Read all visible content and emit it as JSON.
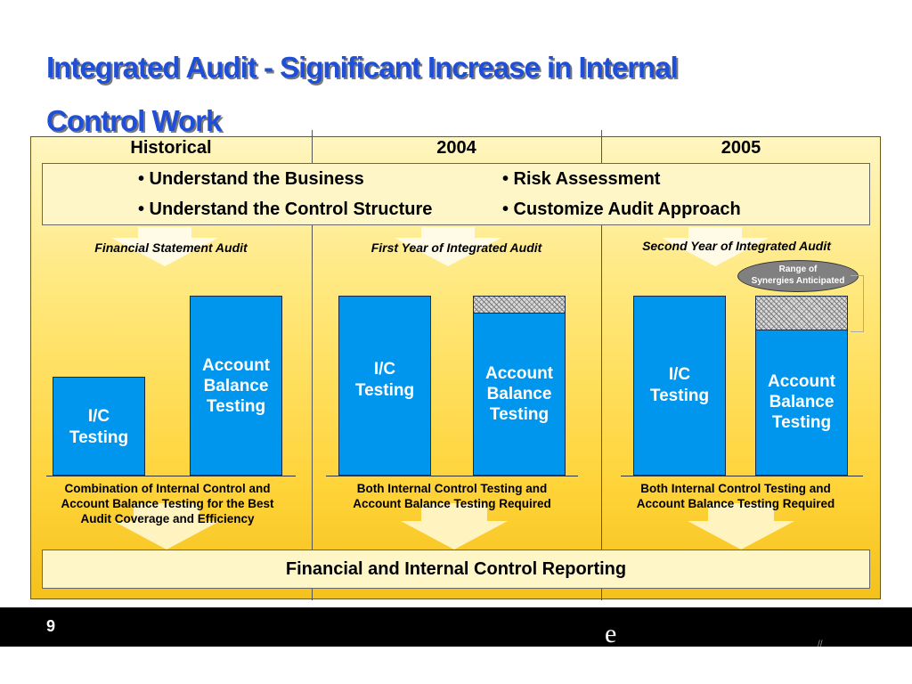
{
  "slide": {
    "title_line1": "Integrated Audit - Significant Increase in Internal",
    "title_line2": "Control Work",
    "columns": [
      "Historical",
      "2004",
      "2005"
    ],
    "bullets": {
      "left": [
        "• Understand the Business",
        "• Understand the Control Structure"
      ],
      "right": [
        "• Risk Assessment",
        "• Customize Audit Approach"
      ]
    },
    "sections": [
      {
        "label": "Financial Statement Audit",
        "bar1": [
          "I/C",
          "Testing"
        ],
        "bar2": [
          "Account",
          "Balance",
          "Testing"
        ],
        "desc": [
          "Combination of Internal Control and",
          "Account Balance Testing for the Best",
          "Audit Coverage and Efficiency"
        ]
      },
      {
        "label": "First Year of Integrated Audit",
        "bar1": [
          "I/C",
          "Testing"
        ],
        "bar2": [
          "Account",
          "Balance",
          "Testing"
        ],
        "desc": [
          "Both Internal Control Testing and",
          "Account Balance Testing Required"
        ]
      },
      {
        "label": "Second Year of Integrated Audit",
        "bar1": [
          "I/C",
          "Testing"
        ],
        "bar2": [
          "Account",
          "Balance",
          "Testing"
        ],
        "desc": [
          "Both Internal Control Testing and",
          "Account Balance Testing Required"
        ]
      }
    ],
    "synergy_label": [
      "Range of",
      "Synergies Anticipated"
    ],
    "reporting": "Financial and Internal Control Reporting",
    "page_number": "9",
    "footer_glyph": "e",
    "corner_mark": "//"
  },
  "colors": {
    "title": "#1f4fd6",
    "bar": "#0096ee",
    "panel_top": "#fff6c0",
    "panel_bottom": "#f5c11c",
    "footer": "#000000"
  }
}
